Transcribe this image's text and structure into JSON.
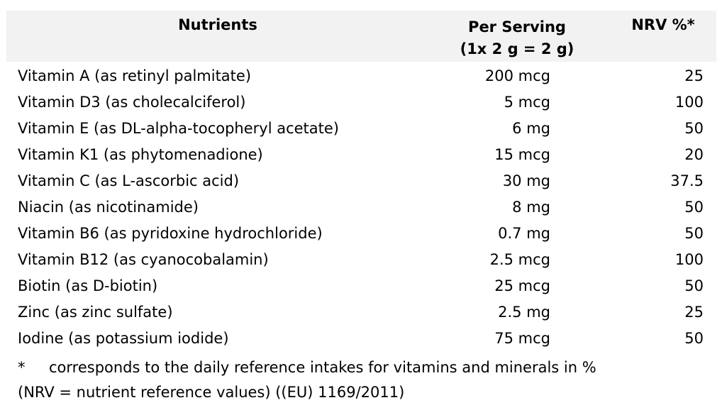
{
  "header": {
    "nutrients": "Nutrients",
    "per_serving_line1": "Per Serving",
    "per_serving_line2": "(1x 2 g = 2 g)",
    "nrv": "NRV %*"
  },
  "rows": [
    {
      "name": "Vitamin A (as retinyl palmitate)",
      "amount": "200 mcg",
      "nrv": "25"
    },
    {
      "name": "Vitamin D3 (as cholecalciferol)",
      "amount": "5 mcg",
      "nrv": "100"
    },
    {
      "name": "Vitamin E (as DL-alpha-tocopheryl acetate)",
      "amount": "6 mg",
      "nrv": "50"
    },
    {
      "name": "Vitamin K1 (as phytomenadione)",
      "amount": "15 mcg",
      "nrv": "20"
    },
    {
      "name": "Vitamin C (as L-ascorbic acid)",
      "amount": "30 mg",
      "nrv": "37.5"
    },
    {
      "name": "Niacin (as nicotinamide)",
      "amount": "8 mg",
      "nrv": "50"
    },
    {
      "name": "Vitamin B6 (as pyridoxine hydrochloride)",
      "amount": "0.7 mg",
      "nrv": "50"
    },
    {
      "name": "Vitamin B12 (as cyanocobalamin)",
      "amount": "2.5 mcg",
      "nrv": "100"
    },
    {
      "name": "Biotin (as D-biotin)",
      "amount": "25 mcg",
      "nrv": "50"
    },
    {
      "name": "Zinc (as zinc sulfate)",
      "amount": "2.5 mg",
      "nrv": "25"
    },
    {
      "name": "Iodine (as potassium iodide)",
      "amount": "75 mcg",
      "nrv": "50"
    }
  ],
  "footnote": {
    "marker": "*",
    "line1": "corresponds to the daily reference intakes for vitamins and minerals in %",
    "line2": "(NRV = nutrient reference values) ((EU) 1169/2011)"
  },
  "colors": {
    "header_background": "#f2f2f2",
    "text": "#000000"
  }
}
